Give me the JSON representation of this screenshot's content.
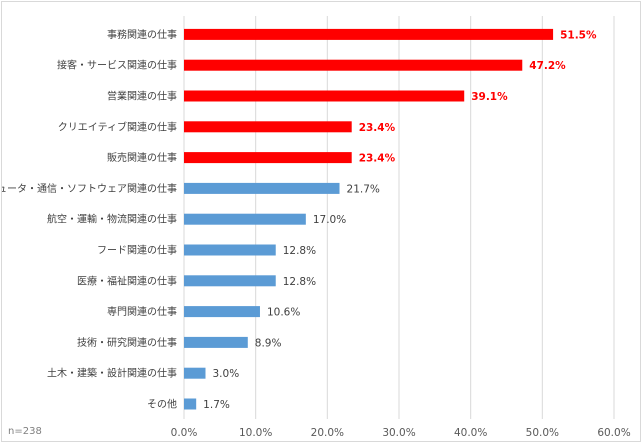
{
  "chart_data": {
    "type": "bar",
    "orientation": "horizontal",
    "categories": [
      "事務関連の仕事",
      "接客・サービス関連の仕事",
      "営業関連の仕事",
      "クリエイティブ関連の仕事",
      "販売関連の仕事",
      "コンピュータ・通信・ソフトウェア関連の仕事",
      "航空・運輸・物流関連の仕事",
      "フード関連の仕事",
      "医療・福祉関連の仕事",
      "専門関連の仕事",
      "技術・研究関連の仕事",
      "土木・建築・設計関連の仕事",
      "その他"
    ],
    "values": [
      51.5,
      47.2,
      39.1,
      23.4,
      23.4,
      21.7,
      17.0,
      12.8,
      12.8,
      10.6,
      8.9,
      3.0,
      1.7
    ],
    "value_labels": [
      "51.5%",
      "47.2%",
      "39.1%",
      "23.4%",
      "23.4%",
      "21.7%",
      "17.0%",
      "12.8%",
      "12.8%",
      "10.6%",
      "8.9%",
      "3.0%",
      "1.7%"
    ],
    "highlight_top_n": 5,
    "xlim": [
      0,
      60
    ],
    "x_ticks": [
      0,
      10,
      20,
      30,
      40,
      50,
      60
    ],
    "x_tick_labels": [
      "0.0%",
      "10.0%",
      "20.0%",
      "30.0%",
      "40.0%",
      "50.0%",
      "60.0%"
    ],
    "grid": "vertical",
    "colors": {
      "highlight": "#ff0000",
      "normal": "#5b9bd5",
      "grid": "#d9d9d9"
    },
    "note": "n=238"
  }
}
